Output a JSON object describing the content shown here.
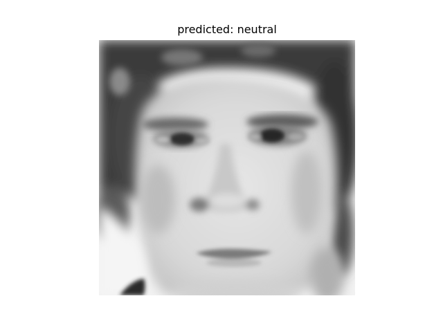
{
  "figure": {
    "title": "predicted: neutral"
  },
  "image": {
    "subject": "grayscale face photo",
    "colormap": "gray"
  }
}
